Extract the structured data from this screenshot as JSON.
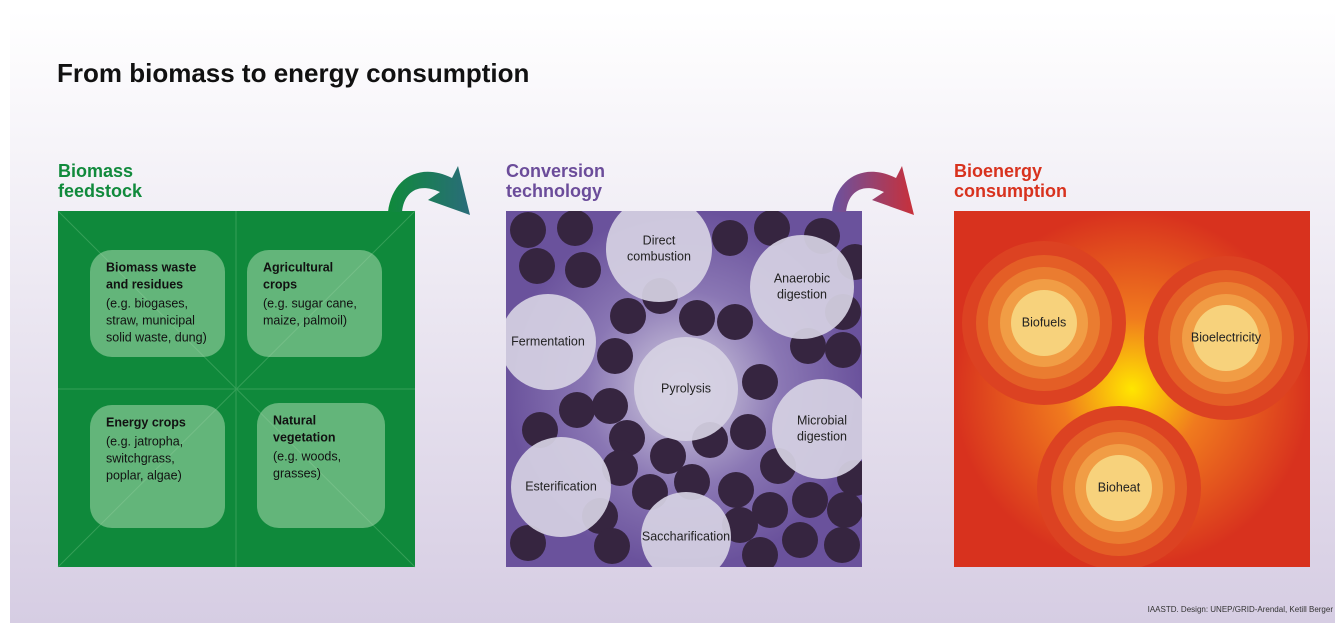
{
  "title": "From biomass to energy consumption",
  "panels": [
    {
      "heading": [
        "Biomass",
        "feedstock"
      ],
      "items": [
        {
          "title": [
            "Biomass waste",
            "and residues"
          ],
          "detail": [
            "(e.g. biogases,",
            "straw, municipal",
            "solid waste, dung)"
          ]
        },
        {
          "title": [
            "Agricultural",
            "crops"
          ],
          "detail": [
            "(e.g. sugar cane,",
            "maize, palmoil)"
          ]
        },
        {
          "title": [
            "Energy crops"
          ],
          "detail": [
            "(e.g. jatropha,",
            "switchgrass,",
            "poplar, algae)"
          ]
        },
        {
          "title": [
            "Natural",
            "vegetation"
          ],
          "detail": [
            "(e.g. woods,",
            "grasses)"
          ]
        }
      ]
    },
    {
      "heading": [
        "Conversion",
        "technology"
      ],
      "items": [
        {
          "label": [
            "Direct",
            "combustion"
          ]
        },
        {
          "label": [
            "Anaerobic",
            "digestion"
          ]
        },
        {
          "label": [
            "Fermentation"
          ]
        },
        {
          "label": [
            "Pyrolysis"
          ]
        },
        {
          "label": [
            "Microbial",
            "digestion"
          ]
        },
        {
          "label": [
            "Esterification"
          ]
        },
        {
          "label": [
            "Saccharification"
          ]
        }
      ]
    },
    {
      "heading": [
        "Bioenergy",
        "consumption"
      ],
      "items": [
        {
          "label": [
            "Biofuels"
          ]
        },
        {
          "label": [
            "Bioelectricity"
          ]
        },
        {
          "label": [
            "Bioheat"
          ]
        }
      ]
    }
  ],
  "credit": "IAASTD. Design: UNEP/GRID-Arendal, Ketill Berger"
}
